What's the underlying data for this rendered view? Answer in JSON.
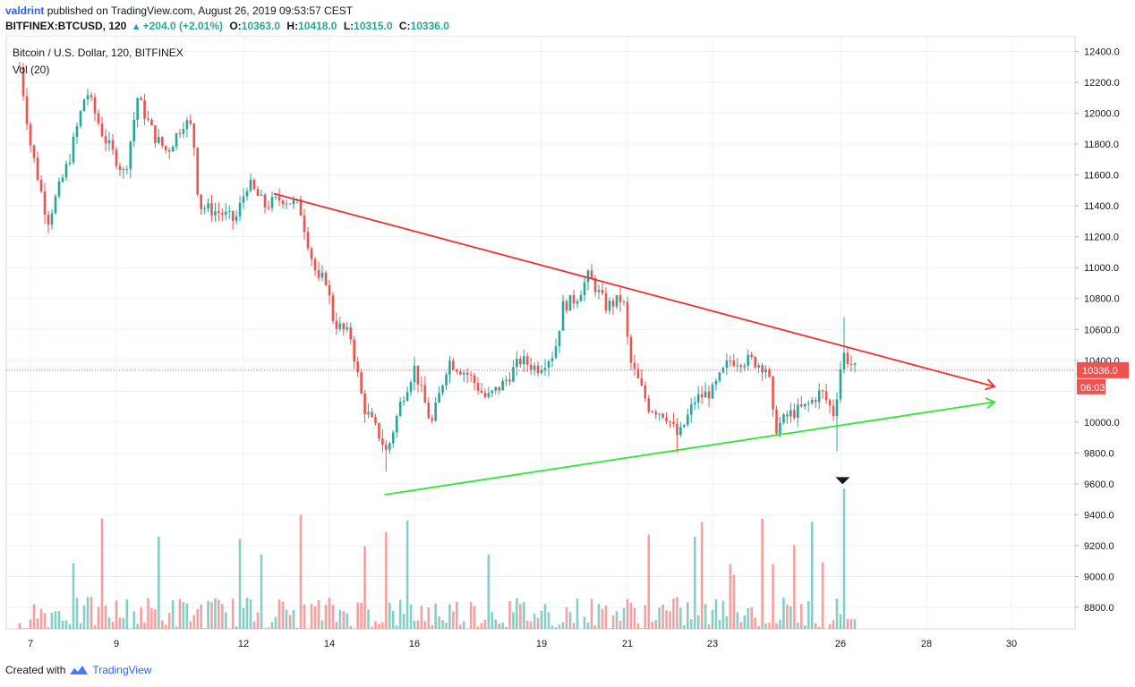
{
  "header": {
    "author": "valdrint",
    "published_text": "published on TradingView.com, August 26, 2019 09:53:57 CEST",
    "symbol": "BITFINEX:BTCUSD, 120",
    "change": "+204.0 (+2.01%)",
    "open_label": "O:",
    "open": "10363.0",
    "high_label": "H:",
    "high": "10418.0",
    "low_label": "L:",
    "low": "10315.0",
    "close_label": "C:",
    "close": "10336.0"
  },
  "legend": {
    "series_title": "Bitcoin / U.S. Dollar, 120, BITFINEX",
    "volume_title": "Vol (20)"
  },
  "footer": {
    "created_with": "Created with",
    "brand": "TradingView"
  },
  "colors": {
    "up": "#26a69a",
    "down": "#ef5350",
    "resistance": "#f23030",
    "support": "#2ee82e",
    "grid": "#e8f0f7",
    "price_line": "#ef5350"
  },
  "chart_data": {
    "type": "candlestick",
    "title": "Bitcoin / U.S. Dollar, 120, BITFINEX",
    "x_ticks": [
      "7",
      "9",
      "12",
      "14",
      "16",
      "19",
      "21",
      "23",
      "26",
      "28",
      "30"
    ],
    "y_ticks": [
      "12400.0",
      "12200.0",
      "12000.0",
      "11800.0",
      "11600.0",
      "11400.0",
      "11200.0",
      "11000.0",
      "10800.0",
      "10600.0",
      "10400.0",
      "10000.0",
      "9800.0",
      "9600.0",
      "9400.0",
      "9200.0",
      "9000.0",
      "8800.0"
    ],
    "ylim": [
      8660,
      12520
    ],
    "last_price_label": "10336.0",
    "countdown_label": "06:03",
    "last_price": 10336,
    "trendlines": [
      {
        "name": "resistance",
        "from": {
          "day": 12.7,
          "price": 11480
        },
        "to": {
          "day": 29.6,
          "price": 10230
        },
        "arrow": true
      },
      {
        "name": "support",
        "from": {
          "day": 15.3,
          "price": 9530
        },
        "to": {
          "day": 29.6,
          "price": 10130
        },
        "arrow": true
      }
    ],
    "key_prices": [
      {
        "day": 6.75,
        "price": 12300
      },
      {
        "day": 7.0,
        "price": 11800
      },
      {
        "day": 7.4,
        "price": 11300
      },
      {
        "day": 7.9,
        "price": 11700
      },
      {
        "day": 8.3,
        "price": 12150
      },
      {
        "day": 8.7,
        "price": 11850
      },
      {
        "day": 9.2,
        "price": 11600
      },
      {
        "day": 9.5,
        "price": 12100
      },
      {
        "day": 9.9,
        "price": 11850
      },
      {
        "day": 10.2,
        "price": 11750
      },
      {
        "day": 10.6,
        "price": 11950
      },
      {
        "day": 10.8,
        "price": 11900
      },
      {
        "day": 10.95,
        "price": 11400
      },
      {
        "day": 11.5,
        "price": 11350
      },
      {
        "day": 11.8,
        "price": 11300
      },
      {
        "day": 12.1,
        "price": 11550
      },
      {
        "day": 12.5,
        "price": 11400
      },
      {
        "day": 12.9,
        "price": 11450
      },
      {
        "day": 13.3,
        "price": 11400
      },
      {
        "day": 13.6,
        "price": 11050
      },
      {
        "day": 13.75,
        "price": 10900
      },
      {
        "day": 13.9,
        "price": 10950
      },
      {
        "day": 14.1,
        "price": 10650
      },
      {
        "day": 14.5,
        "price": 10550
      },
      {
        "day": 14.8,
        "price": 10100
      },
      {
        "day": 15.2,
        "price": 9900
      },
      {
        "day": 15.35,
        "price": 9800
      },
      {
        "day": 15.7,
        "price": 10150
      },
      {
        "day": 16.0,
        "price": 10350
      },
      {
        "day": 16.4,
        "price": 9980
      },
      {
        "day": 16.8,
        "price": 10400
      },
      {
        "day": 17.3,
        "price": 10300
      },
      {
        "day": 17.7,
        "price": 10150
      },
      {
        "day": 18.1,
        "price": 10250
      },
      {
        "day": 18.5,
        "price": 10400
      },
      {
        "day": 18.9,
        "price": 10350
      },
      {
        "day": 19.3,
        "price": 10450
      },
      {
        "day": 19.5,
        "price": 10750
      },
      {
        "day": 19.8,
        "price": 10800
      },
      {
        "day": 20.1,
        "price": 10950
      },
      {
        "day": 20.5,
        "price": 10750
      },
      {
        "day": 20.9,
        "price": 10800
      },
      {
        "day": 21.05,
        "price": 10400
      },
      {
        "day": 21.5,
        "price": 10100
      },
      {
        "day": 21.9,
        "price": 10050
      },
      {
        "day": 22.2,
        "price": 9900
      },
      {
        "day": 22.6,
        "price": 10150
      },
      {
        "day": 23.0,
        "price": 10200
      },
      {
        "day": 23.4,
        "price": 10400
      },
      {
        "day": 23.9,
        "price": 10400
      },
      {
        "day": 24.3,
        "price": 10350
      },
      {
        "day": 24.45,
        "price": 9950
      },
      {
        "day": 24.8,
        "price": 10050
      },
      {
        "day": 25.2,
        "price": 10100
      },
      {
        "day": 25.55,
        "price": 10200
      },
      {
        "day": 25.85,
        "price": 10050
      },
      {
        "day": 26.05,
        "price": 10450
      },
      {
        "day": 26.35,
        "price": 10336
      }
    ]
  }
}
